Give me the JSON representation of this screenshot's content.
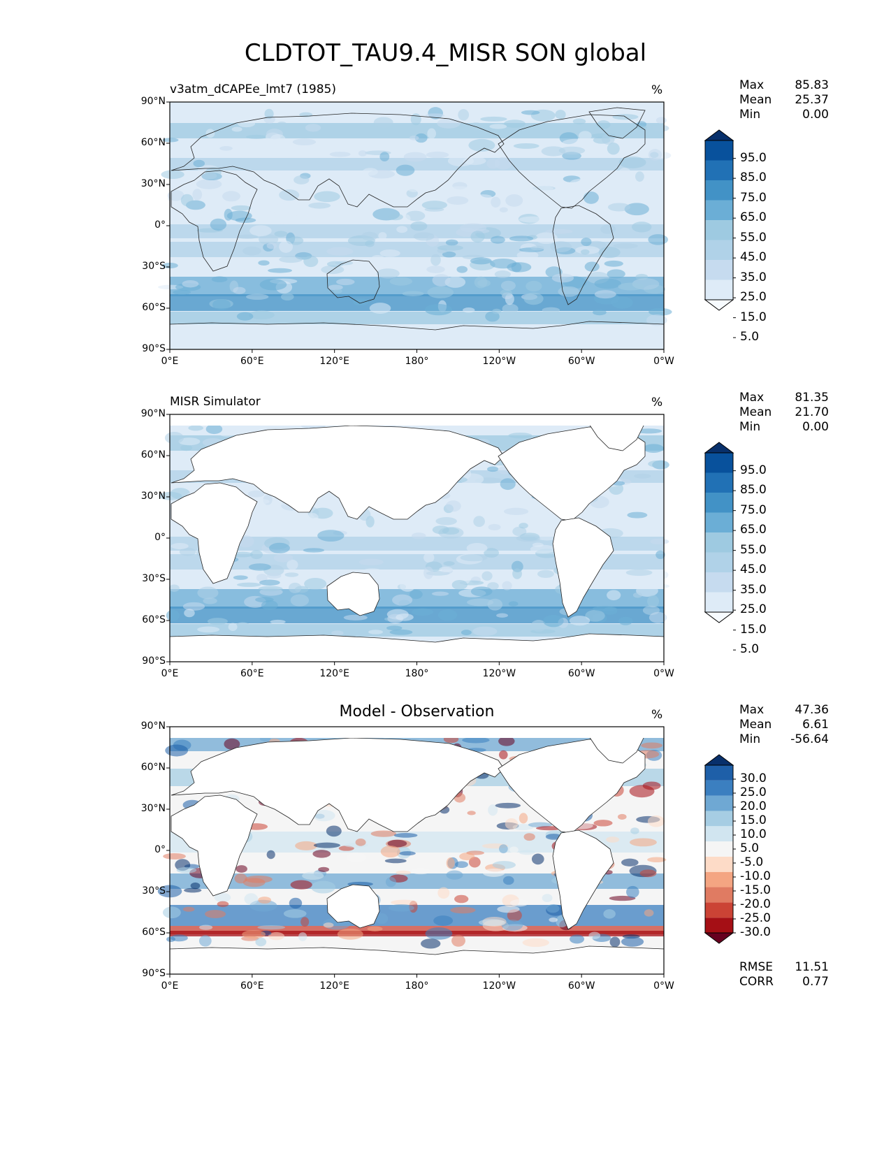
{
  "title": "CLDTOT_TAU9.4_MISR SON global",
  "lat_ticks": [
    "90°N",
    "60°N",
    "30°N",
    "0°",
    "30°S",
    "60°S",
    "90°S"
  ],
  "lon_ticks": [
    "0°E",
    "60°E",
    "120°E",
    "180°",
    "120°W",
    "60°W",
    "0°W"
  ],
  "panels": [
    {
      "label": "v3atm_dCAPEe_lmt7 (1985)",
      "unit": "%",
      "stats": {
        "max_label": "Max",
        "max": "85.83",
        "mean_label": "Mean",
        "mean": "25.37",
        "min_label": "Min",
        "min": "0.00"
      },
      "colorbar": {
        "ticks": [
          "95.0",
          "85.0",
          "75.0",
          "65.0",
          "55.0",
          "45.0",
          "35.0",
          "25.0",
          "15.0",
          "5.0"
        ],
        "colors": [
          "#f7fbff",
          "#deebf7",
          "#c6dbef",
          "#b0d2e8",
          "#9ecae1",
          "#6baed6",
          "#4292c6",
          "#2171b5",
          "#08519c",
          "#08306b"
        ]
      }
    },
    {
      "label": "MISR Simulator",
      "unit": "%",
      "stats": {
        "max_label": "Max",
        "max": "81.35",
        "mean_label": "Mean",
        "mean": "21.70",
        "min_label": "Min",
        "min": "0.00"
      },
      "colorbar": {
        "ticks": [
          "95.0",
          "85.0",
          "75.0",
          "65.0",
          "55.0",
          "45.0",
          "35.0",
          "25.0",
          "15.0",
          "5.0"
        ],
        "colors": [
          "#f7fbff",
          "#deebf7",
          "#c6dbef",
          "#b0d2e8",
          "#9ecae1",
          "#6baed6",
          "#4292c6",
          "#2171b5",
          "#08519c",
          "#08306b"
        ]
      }
    },
    {
      "label": "Model - Observation",
      "unit": "%",
      "stats": {
        "max_label": "Max",
        "max": "47.36",
        "mean_label": "Mean",
        "mean": "6.61",
        "min_label": "Min",
        "min": "-56.64"
      },
      "extra": {
        "rmse_label": "RMSE",
        "rmse": "11.51",
        "corr_label": "CORR",
        "corr": "0.77"
      },
      "colorbar": {
        "ticks": [
          "30.0",
          "25.0",
          "20.0",
          "15.0",
          "10.0",
          "5.0",
          "-5.0",
          "-10.0",
          "-15.0",
          "-20.0",
          "-25.0",
          "-30.0"
        ],
        "colors": [
          "#67001f",
          "#a50f15",
          "#cb4335",
          "#e07b62",
          "#f4a582",
          "#fddbc7",
          "#f5f5f5",
          "#d1e5f0",
          "#a6cde3",
          "#6fa8d3",
          "#3b7fc0",
          "#1e5fa8",
          "#08306b"
        ]
      }
    }
  ]
}
